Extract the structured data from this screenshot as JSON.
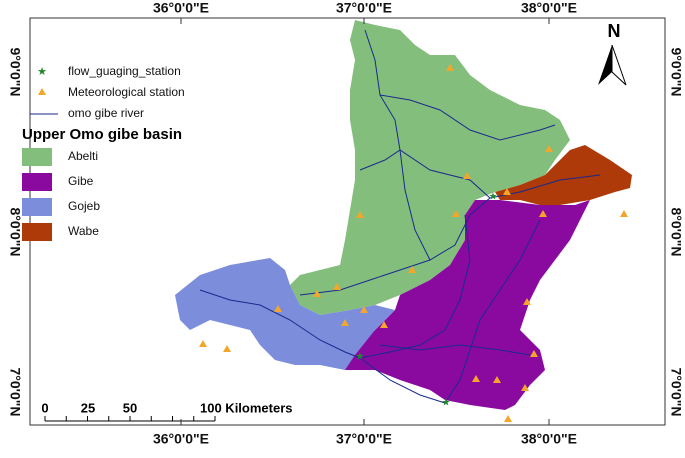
{
  "map": {
    "longitudes": [
      "36°0'0\"E",
      "37°0'0\"E",
      "38°0'0\"E"
    ],
    "latitudes": [
      "9°0'0\"N",
      "8°0'0\"N",
      "7°0'0\"N"
    ],
    "north": "N",
    "legend": {
      "items": [
        "flow_guaging_station",
        "Meteorological station",
        "omo gibe river"
      ],
      "title": "Upper Omo gibe basin",
      "basins": [
        {
          "name": "Abelti",
          "color": "#84be7d"
        },
        {
          "name": "Gibe",
          "color": "#8a0aa0"
        },
        {
          "name": "Gojeb",
          "color": "#7b8ddb"
        },
        {
          "name": "Wabe",
          "color": "#ad3a08"
        }
      ]
    },
    "scale_bar": [
      "0",
      "25",
      "50",
      "100 Kilometers"
    ]
  }
}
